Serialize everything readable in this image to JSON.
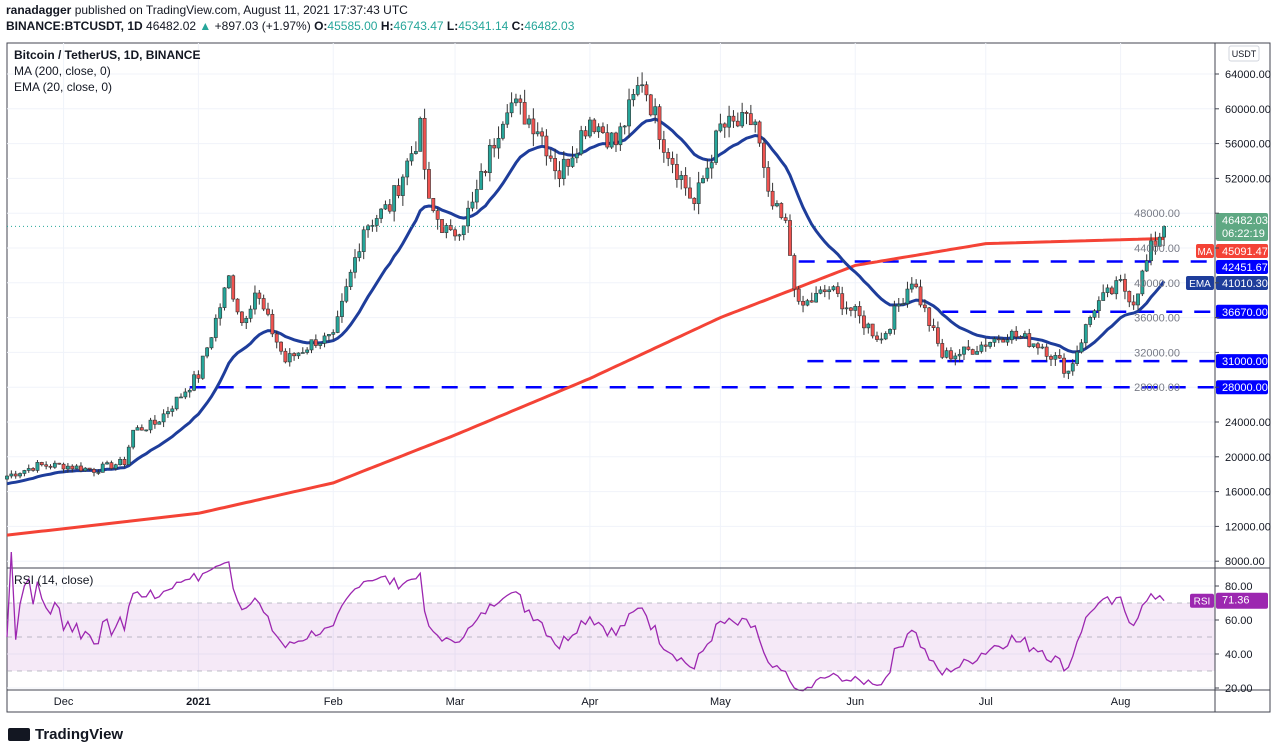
{
  "header": {
    "publisher": "ranadagger",
    "published_text": "published on TradingView.com, August 11, 2021 17:37:43 UTC",
    "symbol": "BINANCE:BTCUSDT, 1D",
    "last": "46482.02",
    "change": "+897.03 (+1.97%)",
    "o_label": "O:",
    "o": "45585.00",
    "h_label": "H:",
    "h": "46743.47",
    "l_label": "L:",
    "l": "45341.14",
    "c_label": "C:",
    "c": "46482.03"
  },
  "legend": {
    "title": "Bitcoin / TetherUS, 1D, BINANCE",
    "ma": "MA (200, close, 0)",
    "ema": "EMA (20, close, 0)",
    "rsi": "RSI (14, close)"
  },
  "logo": "TradingView",
  "colors": {
    "up": "#26a69a",
    "down": "#ef5350",
    "ma": "#f44336",
    "ema": "#1e3d9b",
    "level": "#0000ff",
    "rsi": "#9c27b0"
  },
  "chart_data": {
    "type": "candlestick",
    "currency": "USDT",
    "start_date": "2020-11-18",
    "ylim": [
      6000,
      66500
    ],
    "y_ticks": [
      8000,
      12000,
      16000,
      20000,
      24000,
      28000,
      32000,
      36000,
      40000,
      44000,
      48000,
      52000,
      56000,
      60000,
      64000
    ],
    "x_ticks": [
      {
        "label": "Dec",
        "date": "2020-12-01"
      },
      {
        "label": "2021",
        "date": "2021-01-01"
      },
      {
        "label": "Feb",
        "date": "2021-02-01"
      },
      {
        "label": "Mar",
        "date": "2021-03-01"
      },
      {
        "label": "Apr",
        "date": "2021-04-01"
      },
      {
        "label": "May",
        "date": "2021-05-01"
      },
      {
        "label": "Jun",
        "date": "2021-06-01"
      },
      {
        "label": "Jul",
        "date": "2021-07-01"
      },
      {
        "label": "Aug",
        "date": "2021-08-01"
      }
    ],
    "close_anchors": [
      [
        "2020-11-18",
        17800
      ],
      [
        "2020-11-25",
        19000
      ],
      [
        "2020-12-01",
        19000
      ],
      [
        "2020-12-08",
        18500
      ],
      [
        "2020-12-15",
        19400
      ],
      [
        "2020-12-17",
        23000
      ],
      [
        "2020-12-22",
        23800
      ],
      [
        "2020-12-27",
        26500
      ],
      [
        "2021-01-01",
        29400
      ],
      [
        "2021-01-08",
        40500
      ],
      [
        "2021-01-11",
        35500
      ],
      [
        "2021-01-14",
        39000
      ],
      [
        "2021-01-21",
        31000
      ],
      [
        "2021-01-28",
        33400
      ],
      [
        "2021-02-01",
        33500
      ],
      [
        "2021-02-08",
        46500
      ],
      [
        "2021-02-14",
        48800
      ],
      [
        "2021-02-21",
        57500
      ],
      [
        "2021-02-23",
        48800
      ],
      [
        "2021-02-28",
        45200
      ],
      [
        "2021-03-05",
        48800
      ],
      [
        "2021-03-13",
        61000
      ],
      [
        "2021-03-20",
        58000
      ],
      [
        "2021-03-25",
        52500
      ],
      [
        "2021-04-01",
        59000
      ],
      [
        "2021-04-07",
        56000
      ],
      [
        "2021-04-13",
        63500
      ],
      [
        "2021-04-18",
        56200
      ],
      [
        "2021-04-25",
        49000
      ],
      [
        "2021-05-01",
        57800
      ],
      [
        "2021-05-09",
        58500
      ],
      [
        "2021-05-12",
        49500
      ],
      [
        "2021-05-16",
        46400
      ],
      [
        "2021-05-19",
        37000
      ],
      [
        "2021-05-26",
        39300
      ],
      [
        "2021-06-07",
        33500
      ],
      [
        "2021-06-14",
        40500
      ],
      [
        "2021-06-21",
        31600
      ],
      [
        "2021-06-26",
        32000
      ],
      [
        "2021-07-06",
        34200
      ],
      [
        "2021-07-14",
        32800
      ],
      [
        "2021-07-20",
        29800
      ],
      [
        "2021-07-26",
        37300
      ],
      [
        "2021-08-01",
        39800
      ],
      [
        "2021-08-04",
        38000
      ],
      [
        "2021-08-08",
        43800
      ],
      [
        "2021-08-11",
        46482.03
      ]
    ],
    "ma200_anchors": [
      [
        "2020-11-18",
        11000
      ],
      [
        "2021-01-01",
        13500
      ],
      [
        "2021-02-01",
        17000
      ],
      [
        "2021-03-01",
        22500
      ],
      [
        "2021-04-01",
        29000
      ],
      [
        "2021-05-01",
        36000
      ],
      [
        "2021-06-01",
        42000
      ],
      [
        "2021-07-01",
        44500
      ],
      [
        "2021-08-11",
        45091.47
      ]
    ],
    "levels": [
      {
        "value": 42451.67,
        "label": "42451.67",
        "from": "2021-05-19"
      },
      {
        "value": 36670.0,
        "label": "36670.00",
        "from": "2021-06-21"
      },
      {
        "value": 31000.0,
        "label": "31000.00",
        "from": "2021-05-21"
      },
      {
        "value": 28000.0,
        "label": "28000.00",
        "from": "2020-12-30"
      }
    ],
    "last_price": {
      "label": "46482.03",
      "countdown": "06:22:19"
    },
    "ma_label": {
      "name": "MA",
      "value": "45091.47"
    },
    "ema_label": {
      "name": "EMA",
      "value": "41010.30"
    },
    "rsi": {
      "ylim": [
        18,
        92
      ],
      "y_ticks": [
        20,
        40,
        60,
        80
      ],
      "band": [
        30,
        70
      ],
      "mid": 50,
      "name": "RSI",
      "value": "71.36"
    }
  }
}
